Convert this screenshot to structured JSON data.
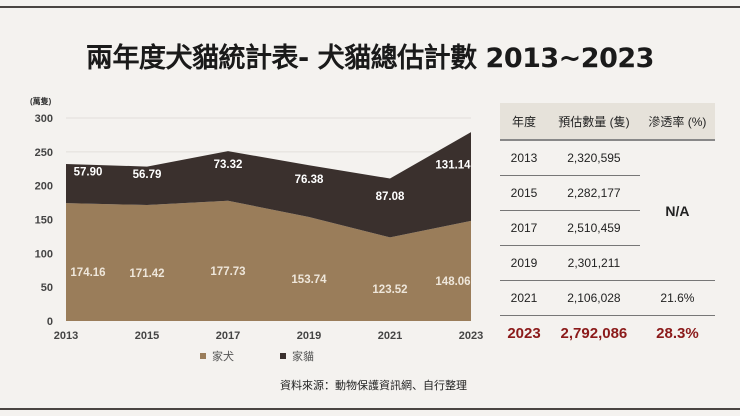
{
  "title": "兩年度犬貓統計表- 犬貓總估計數 2013~2023",
  "source": "資料來源：動物保護資訊網、自行整理",
  "chart_data": {
    "type": "area",
    "stacked": true,
    "unit_label": "(萬隻)",
    "categories": [
      "2013",
      "2015",
      "2017",
      "2019",
      "2021",
      "2023"
    ],
    "ylim": [
      0,
      300
    ],
    "yticks": [
      0,
      50,
      100,
      150,
      200,
      250,
      300
    ],
    "grid": true,
    "legend_position": "bottom",
    "series": [
      {
        "name": "家犬",
        "color": "#9a7d5a",
        "values": [
          174.16,
          171.42,
          177.73,
          153.74,
          123.52,
          148.06
        ],
        "labels": [
          "174.16",
          "171.42",
          "177.73",
          "153.74",
          "123.52",
          "148.06"
        ]
      },
      {
        "name": "家貓",
        "color": "#3a302d",
        "values": [
          57.9,
          56.79,
          73.32,
          76.38,
          87.08,
          131.14
        ],
        "labels": [
          "57.90",
          "56.79",
          "73.32",
          "76.38",
          "87.08",
          "131.14"
        ]
      }
    ]
  },
  "table": {
    "headers": [
      "年度",
      "預估數量 (隻)",
      "滲透率 (%)"
    ],
    "rows": [
      {
        "year": "2013",
        "count": "2,320,595"
      },
      {
        "year": "2015",
        "count": "2,282,177"
      },
      {
        "year": "2017",
        "count": "2,510,459"
      },
      {
        "year": "2019",
        "count": "2,301,211"
      },
      {
        "year": "2021",
        "count": "2,106,028",
        "rate": "21.6%"
      },
      {
        "year": "2023",
        "count": "2,792,086",
        "rate": "28.3%"
      }
    ],
    "na_label": "N/A",
    "highlight_color": "#8b1a1a"
  }
}
